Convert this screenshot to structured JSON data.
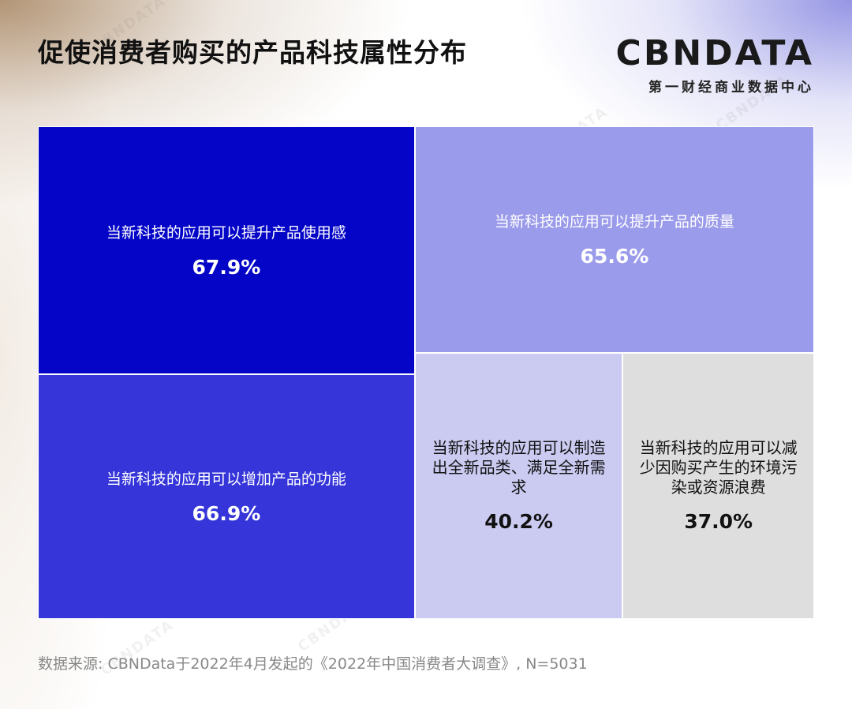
{
  "header": {
    "title": "促使消费者购买的产品科技属性分布",
    "logo_main": "CBNDATA",
    "logo_sub": "第一财经商业数据中心"
  },
  "chart_data": {
    "type": "treemap",
    "title": "促使消费者购买的产品科技属性分布",
    "items": [
      {
        "label": "当新科技的应用可以提升产品使用感",
        "value": 67.9,
        "value_text": "67.9%",
        "color": "#0505C8",
        "text_color": "#ffffff"
      },
      {
        "label": "当新科技的应用可以提升产品的质量",
        "value": 65.6,
        "value_text": "65.6%",
        "color": "#9B9BEB",
        "text_color": "#ffffff"
      },
      {
        "label": "当新科技的应用可以增加产品的功能",
        "value": 66.9,
        "value_text": "66.9%",
        "color": "#3535D9",
        "text_color": "#ffffff"
      },
      {
        "label": "当新科技的应用可以制造出全新品类、满足全新需求",
        "value": 40.2,
        "value_text": "40.2%",
        "color": "#CBCBF2",
        "text_color": "#111111"
      },
      {
        "label": "当新科技的应用可以减少因购买产生的环境污染或资源浪费",
        "value": 37.0,
        "value_text": "37.0%",
        "color": "#DEDEDE",
        "text_color": "#111111"
      }
    ]
  },
  "footer": {
    "source": "数据来源: CBNData于2022年4月发起的《2022年中国消费者大调查》, N=5031"
  }
}
